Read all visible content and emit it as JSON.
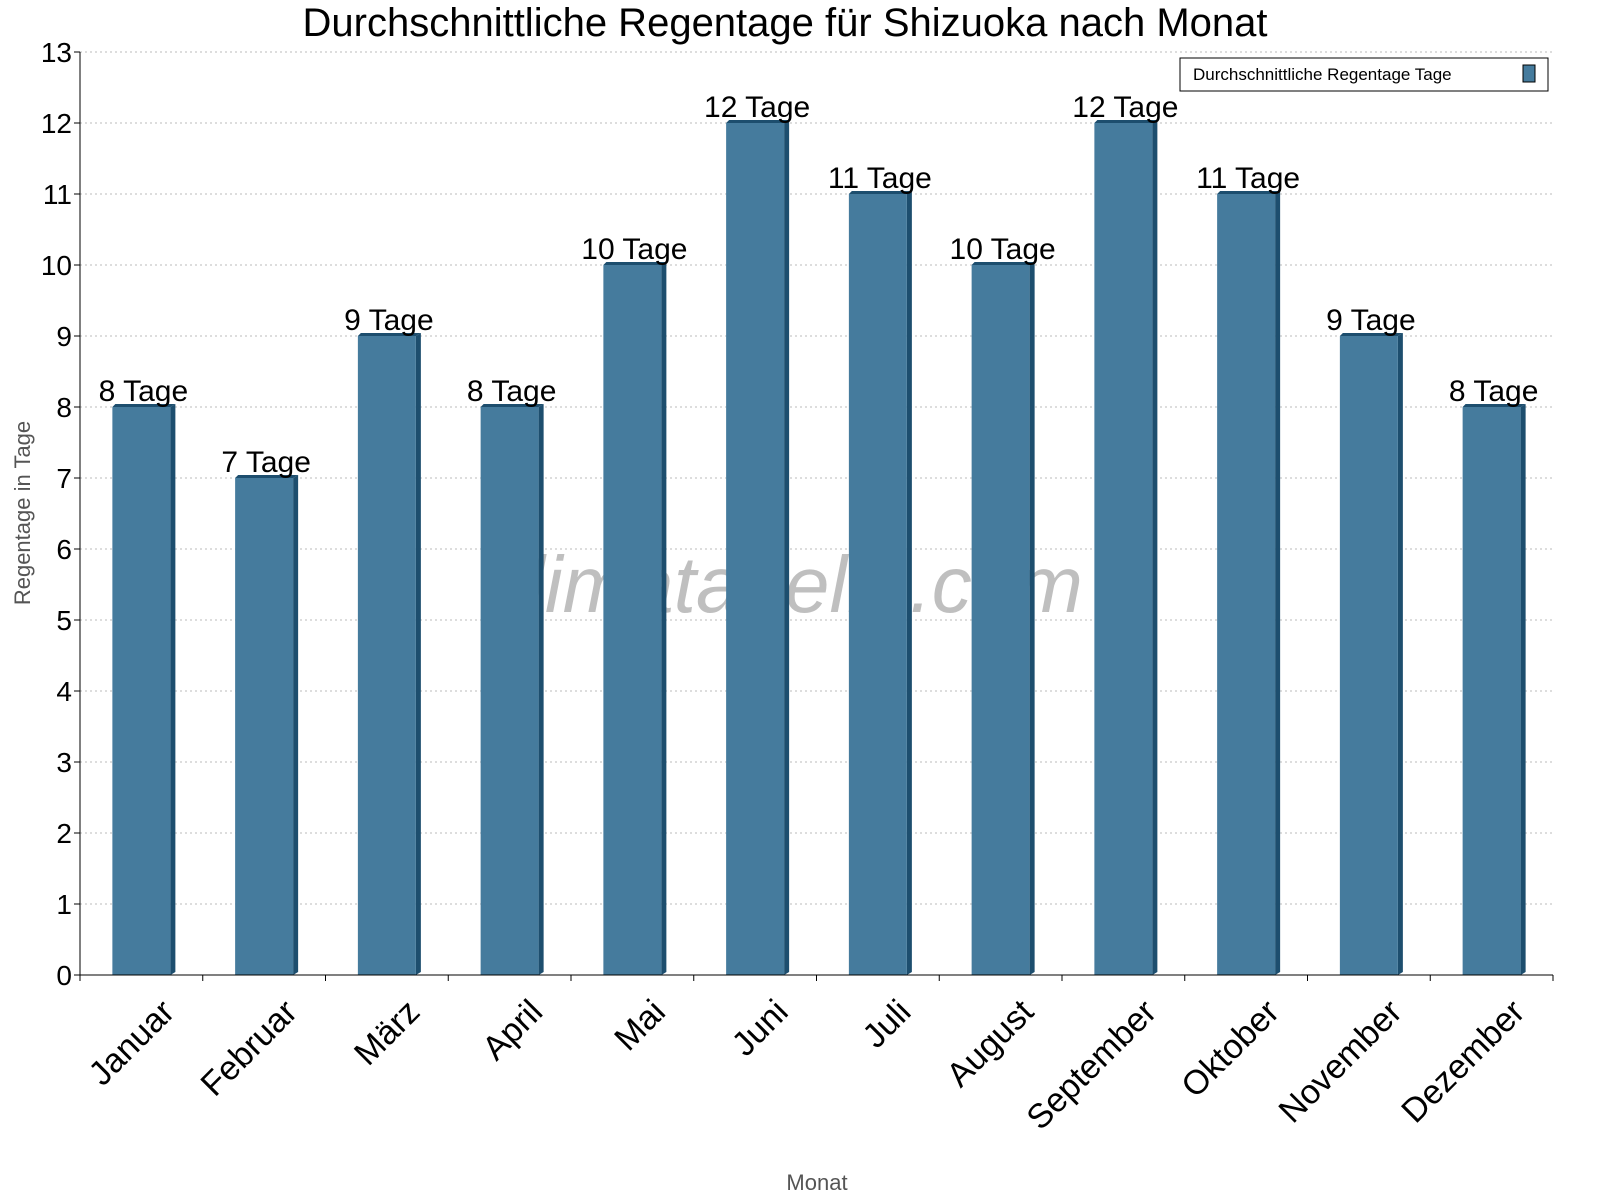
{
  "chart_data": {
    "type": "bar",
    "title": "Durchschnittliche Regentage für Shizuoka nach Monat",
    "xlabel": "Monat",
    "ylabel": "Regentage in Tage",
    "ylim": [
      0,
      13
    ],
    "yticks": [
      "0",
      "1",
      "2",
      "3",
      "4",
      "5",
      "6",
      "7",
      "8",
      "9",
      "10",
      "11",
      "12",
      "13"
    ],
    "grid": true,
    "legend_position": "top-right",
    "categories": [
      "Januar",
      "Februar",
      "März",
      "April",
      "Mai",
      "Juni",
      "Juli",
      "August",
      "September",
      "Oktober",
      "November",
      "Dezember"
    ],
    "series": [
      {
        "name": "Durchschnittliche Regentage Tage",
        "values": [
          8,
          7,
          9,
          8,
          10,
          12,
          11,
          10,
          12,
          11,
          9,
          8
        ],
        "labels": [
          "8 Tage",
          "7 Tage",
          "9 Tage",
          "8 Tage",
          "10 Tage",
          "12 Tage",
          "11 Tage",
          "10 Tage",
          "12 Tage",
          "11 Tage",
          "9 Tage",
          "8 Tage"
        ],
        "color": "#457b9d",
        "side_color": "#1d4e6e"
      }
    ],
    "watermark": "klimatabelle.com"
  }
}
